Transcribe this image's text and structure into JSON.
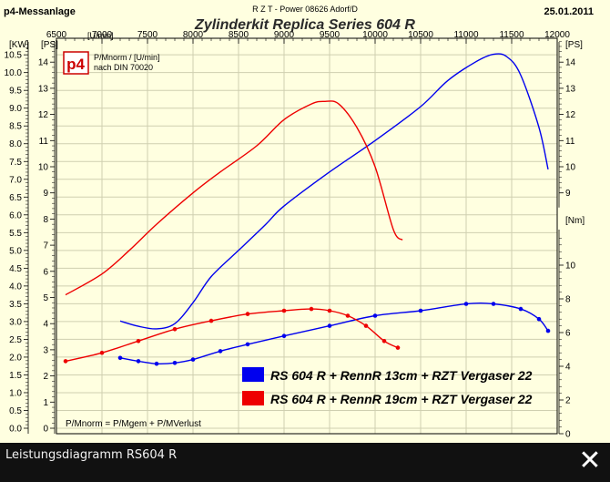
{
  "header": {
    "app_name": "p4-Messanlage",
    "company": "R Z T - Power   08626 Adorf/D",
    "date": "25.01.2011",
    "title": "Zylinderkit Replica Series 604 R"
  },
  "logo": {
    "text": "p4"
  },
  "note": {
    "line1": "P/Mnorm / [U/min]",
    "line2": "nach DIN 70020"
  },
  "formula": "P/Mnorm = P/Mgem + P/MVerlust",
  "footer": {
    "caption": "Leistungsdiagramm RS604 R",
    "close_glyph": "✕"
  },
  "chart_data": {
    "type": "line",
    "title": "Zylinderkit Replica Series 604 R",
    "x_unit_label": "[U/min]",
    "y_left_unit_labels": [
      "[KW]",
      "[PS]"
    ],
    "y_right_unit_labels": [
      "[PS]",
      "[Nm]"
    ],
    "xlim": [
      6500,
      12000
    ],
    "x_ticks": [
      6500,
      7000,
      7500,
      8000,
      8500,
      9000,
      9500,
      10000,
      10500,
      11000,
      11500,
      12000
    ],
    "kw_ticks": [
      0.0,
      0.5,
      1.0,
      1.5,
      2.0,
      2.5,
      3.0,
      3.5,
      4.0,
      4.5,
      5.0,
      5.5,
      6.0,
      6.5,
      7.0,
      7.5,
      8.0,
      8.5,
      9.0,
      9.5,
      10.0,
      10.5
    ],
    "ps_ticks": [
      0,
      1,
      2,
      3,
      4,
      5,
      6,
      7,
      8,
      9,
      10,
      11,
      12,
      13,
      14
    ],
    "ps_right_ticks": [
      9,
      10,
      11,
      12,
      13,
      14
    ],
    "nm_ticks": [
      0,
      2,
      4,
      6,
      8,
      10
    ],
    "grid": true,
    "legend_position": "bottom-right",
    "series": [
      {
        "name": "RS 604 R + RennR 13cm + RZT Vergaser 22",
        "color": "#0000ee",
        "power_ps": [
          [
            7200,
            4.1
          ],
          [
            7400,
            3.9
          ],
          [
            7600,
            3.8
          ],
          [
            7800,
            4.0
          ],
          [
            8000,
            4.8
          ],
          [
            8200,
            5.8
          ],
          [
            8500,
            6.8
          ],
          [
            8800,
            7.8
          ],
          [
            9000,
            8.5
          ],
          [
            9500,
            9.8
          ],
          [
            10000,
            11.0
          ],
          [
            10500,
            12.3
          ],
          [
            10800,
            13.3
          ],
          [
            11100,
            14.0
          ],
          [
            11300,
            14.3
          ],
          [
            11450,
            14.2
          ],
          [
            11600,
            13.5
          ],
          [
            11800,
            11.5
          ],
          [
            11900,
            9.9
          ]
        ],
        "torque_nm": [
          [
            7200,
            4.5
          ],
          [
            7400,
            4.3
          ],
          [
            7600,
            4.15
          ],
          [
            7800,
            4.2
          ],
          [
            8000,
            4.4
          ],
          [
            8300,
            4.9
          ],
          [
            8600,
            5.3
          ],
          [
            9000,
            5.8
          ],
          [
            9500,
            6.4
          ],
          [
            10000,
            7.0
          ],
          [
            10500,
            7.3
          ],
          [
            11000,
            7.7
          ],
          [
            11300,
            7.7
          ],
          [
            11600,
            7.4
          ],
          [
            11800,
            6.8
          ],
          [
            11900,
            6.1
          ]
        ]
      },
      {
        "name": "RS 604 R + RennR 19cm + RZT Vergaser 22",
        "color": "#ee0000",
        "power_ps": [
          [
            6600,
            5.1
          ],
          [
            7000,
            5.9
          ],
          [
            7300,
            6.8
          ],
          [
            7600,
            7.8
          ],
          [
            8000,
            9.0
          ],
          [
            8300,
            9.8
          ],
          [
            8700,
            10.8
          ],
          [
            9000,
            11.8
          ],
          [
            9300,
            12.4
          ],
          [
            9450,
            12.5
          ],
          [
            9600,
            12.4
          ],
          [
            9800,
            11.5
          ],
          [
            10000,
            10.0
          ],
          [
            10200,
            7.6
          ],
          [
            10300,
            7.2
          ]
        ],
        "torque_nm": [
          [
            6600,
            4.3
          ],
          [
            7000,
            4.8
          ],
          [
            7400,
            5.5
          ],
          [
            7800,
            6.2
          ],
          [
            8200,
            6.7
          ],
          [
            8600,
            7.1
          ],
          [
            9000,
            7.3
          ],
          [
            9300,
            7.4
          ],
          [
            9500,
            7.3
          ],
          [
            9700,
            7.0
          ],
          [
            9900,
            6.4
          ],
          [
            10100,
            5.5
          ],
          [
            10250,
            5.1
          ]
        ]
      }
    ]
  }
}
